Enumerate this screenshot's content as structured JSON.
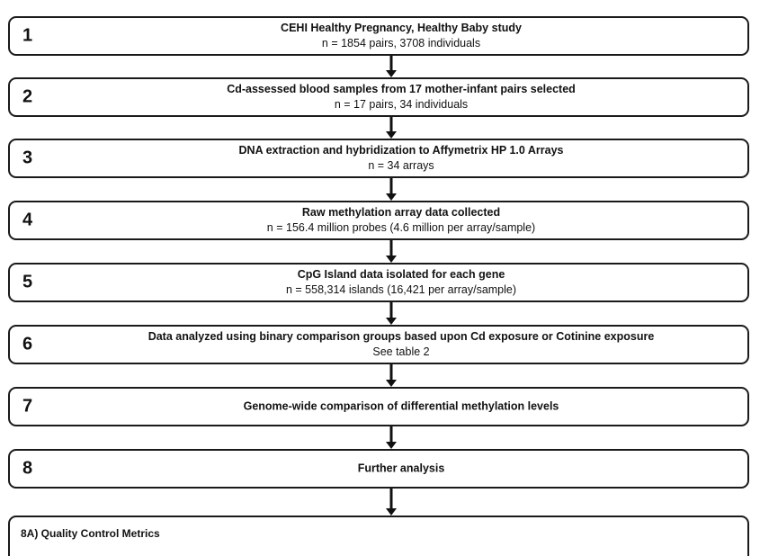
{
  "steps": [
    {
      "number": "1",
      "title": "CEHI Healthy Pregnancy, Healthy Baby study",
      "detail": "n = 1854 pairs, 3708 individuals"
    },
    {
      "number": "2",
      "title": "Cd-assessed blood samples from 17 mother-infant pairs selected",
      "detail": "n = 17 pairs, 34 individuals"
    },
    {
      "number": "3",
      "title": "DNA extraction and hybridization to Affymetrix HP 1.0 Arrays",
      "detail": "n = 34 arrays"
    },
    {
      "number": "4",
      "title": "Raw methylation array data collected",
      "detail": "n = 156.4 million probes (4.6 million per array/sample)"
    },
    {
      "number": "5",
      "title": "CpG Island data isolated for each gene",
      "detail": "n = 558,314 islands (16,421 per array/sample)"
    },
    {
      "number": "6",
      "title": "Data analyzed using binary comparison groups based upon Cd exposure  or Cotinine exposure",
      "detail": "See table 2"
    },
    {
      "number": "7",
      "title": "Genome-wide comparison of differential methylation levels"
    },
    {
      "number": "8",
      "title": "Further analysis"
    }
  ],
  "substep": {
    "label": "8A) Quality Control Metrics"
  }
}
